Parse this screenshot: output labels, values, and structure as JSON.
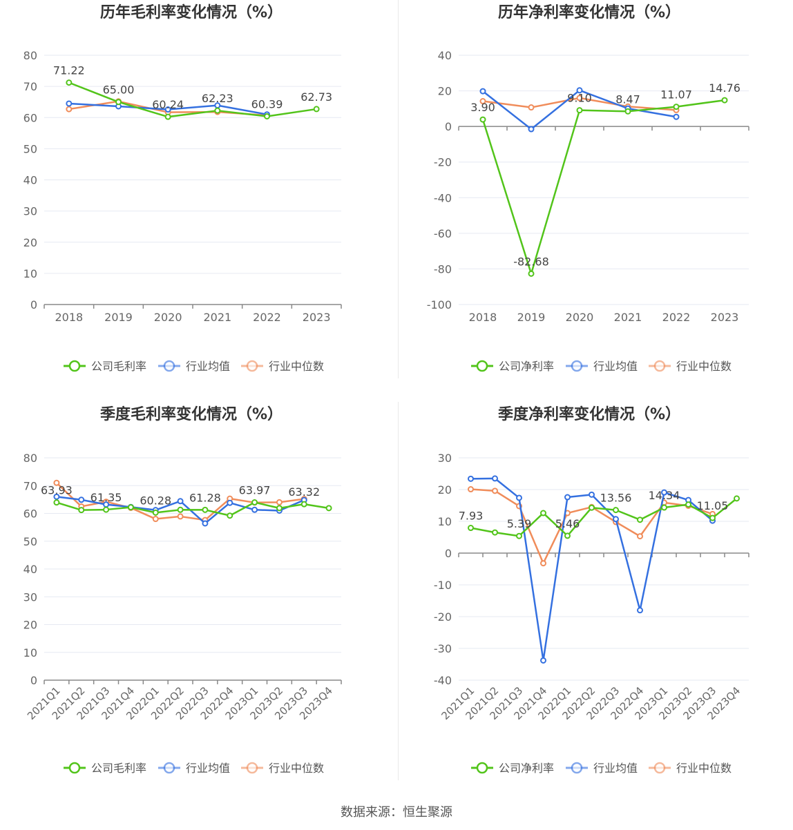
{
  "source_text": "数据来源：恒生聚源",
  "chart_data": [
    {
      "type": "line",
      "title": "历年毛利率变化情况（%）",
      "categories": [
        "2018",
        "2019",
        "2020",
        "2021",
        "2022",
        "2023"
      ],
      "ylim": [
        0,
        80
      ],
      "yticks": [
        0,
        10,
        20,
        30,
        40,
        50,
        60,
        70,
        80
      ],
      "grid": true,
      "legend_position": "bottom-center",
      "series": [
        {
          "name": "公司毛利率",
          "color": "#52c41a",
          "values": [
            71.22,
            65.0,
            60.24,
            62.23,
            60.39,
            62.73
          ]
        },
        {
          "name": "行业均值",
          "color": "#3470e0",
          "values": [
            64.5,
            63.6,
            62.6,
            63.9,
            61.0,
            null
          ]
        },
        {
          "name": "行业中位数",
          "color": "#f08c5a",
          "values": [
            62.7,
            65.2,
            61.7,
            61.8,
            60.7,
            null
          ]
        }
      ],
      "data_labels": [
        "71.22",
        "65.00",
        "60.24",
        "62.23",
        "60.39",
        "62.73"
      ]
    },
    {
      "type": "line",
      "title": "历年净利率变化情况（%）",
      "categories": [
        "2018",
        "2019",
        "2020",
        "2021",
        "2022",
        "2023"
      ],
      "ylim": [
        -100,
        40
      ],
      "yticks": [
        -100,
        -80,
        -60,
        -40,
        -20,
        0,
        20,
        40
      ],
      "grid": true,
      "legend_position": "bottom-center",
      "series": [
        {
          "name": "公司净利率",
          "color": "#52c41a",
          "values": [
            3.9,
            -82.68,
            9.1,
            8.47,
            11.07,
            14.76
          ]
        },
        {
          "name": "行业均值",
          "color": "#3470e0",
          "values": [
            19.8,
            -1.5,
            20.3,
            10.1,
            5.4,
            null
          ]
        },
        {
          "name": "行业中位数",
          "color": "#f08c5a",
          "values": [
            14.2,
            10.7,
            16.0,
            11.2,
            9.2,
            null
          ]
        }
      ],
      "data_labels": [
        "3.90",
        "-82.68",
        "9.10",
        "8.47",
        "11.07",
        "14.76"
      ]
    },
    {
      "type": "line",
      "title": "季度毛利率变化情况（%）",
      "categories": [
        "2021Q1",
        "2021Q2",
        "2021Q3",
        "2021Q4",
        "2022Q1",
        "2022Q2",
        "2022Q3",
        "2022Q4",
        "2023Q1",
        "2023Q2",
        "2023Q3",
        "2023Q4"
      ],
      "ylim": [
        0,
        80
      ],
      "yticks": [
        0,
        10,
        20,
        30,
        40,
        50,
        60,
        70,
        80
      ],
      "grid": true,
      "legend_position": "bottom-center",
      "series": [
        {
          "name": "公司毛利率",
          "color": "#52c41a",
          "values": [
            63.93,
            61.2,
            61.35,
            62.2,
            60.28,
            61.3,
            61.28,
            59.2,
            63.97,
            61.9,
            63.32,
            61.9
          ]
        },
        {
          "name": "行业均值",
          "color": "#3470e0",
          "values": [
            66.0,
            64.9,
            63.2,
            62.3,
            61.2,
            64.4,
            56.4,
            63.8,
            61.3,
            61.0,
            64.8,
            null
          ]
        },
        {
          "name": "行业中位数",
          "color": "#f08c5a",
          "values": [
            71.0,
            62.5,
            64.2,
            62.0,
            58.0,
            58.9,
            57.6,
            65.3,
            63.9,
            64.0,
            65.2,
            null
          ]
        }
      ],
      "data_labels": [
        "63.93",
        "",
        "61.35",
        "",
        "60.28",
        "",
        "61.28",
        "",
        "63.97",
        "",
        "63.32",
        ""
      ]
    },
    {
      "type": "line",
      "title": "季度净利率变化情况（%）",
      "categories": [
        "2021Q1",
        "2021Q2",
        "2021Q3",
        "2021Q4",
        "2022Q1",
        "2022Q2",
        "2022Q3",
        "2022Q4",
        "2023Q1",
        "2023Q2",
        "2023Q3",
        "2023Q4"
      ],
      "ylim": [
        -40,
        30
      ],
      "yticks": [
        -40,
        -30,
        -20,
        -10,
        0,
        10,
        20,
        30
      ],
      "grid": true,
      "legend_position": "bottom-center",
      "series": [
        {
          "name": "公司净利率",
          "color": "#52c41a",
          "values": [
            7.93,
            6.5,
            5.39,
            12.6,
            5.46,
            14.3,
            13.56,
            10.5,
            14.34,
            15.3,
            11.05,
            17.2
          ]
        },
        {
          "name": "行业均值",
          "color": "#3470e0",
          "values": [
            23.4,
            23.5,
            17.4,
            -33.8,
            17.6,
            18.4,
            10.7,
            -18.0,
            19.1,
            16.7,
            10.2,
            null
          ]
        },
        {
          "name": "行业中位数",
          "color": "#f08c5a",
          "values": [
            20.1,
            19.6,
            14.8,
            -3.2,
            12.6,
            14.5,
            9.8,
            5.3,
            15.9,
            14.9,
            12.3,
            null
          ]
        }
      ],
      "data_labels": [
        "7.93",
        "",
        "5.39",
        "",
        "5.46",
        "",
        "13.56",
        "",
        "14.34",
        "",
        "11.05",
        ""
      ]
    }
  ]
}
